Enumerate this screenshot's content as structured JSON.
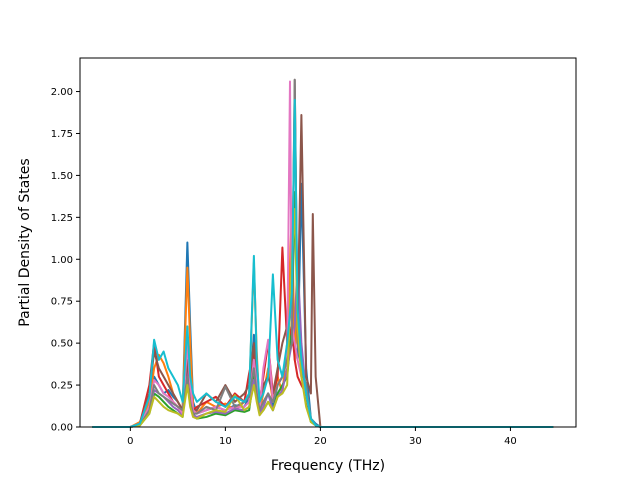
{
  "chart_data": {
    "type": "line",
    "title": "",
    "xlabel": "Frequency (THz)",
    "ylabel": "Partial Density of States",
    "xlim": [
      -5.3,
      46.9
    ],
    "ylim": [
      0.0,
      2.2
    ],
    "xticks": [
      0,
      10,
      20,
      30,
      40
    ],
    "yticks": [
      0.0,
      0.25,
      0.5,
      0.75,
      1.0,
      1.25,
      1.5,
      1.75,
      2.0
    ],
    "xtick_labels": [
      "0",
      "10",
      "20",
      "30",
      "40"
    ],
    "ytick_labels": [
      "0.00",
      "0.25",
      "0.50",
      "0.75",
      "1.00",
      "1.25",
      "1.50",
      "1.75",
      "2.00"
    ],
    "grid": false,
    "legend": "none",
    "series": [
      {
        "color": "#1f77b4",
        "x": [
          -4,
          0,
          1,
          2,
          2.5,
          3,
          3.5,
          4,
          4.5,
          5,
          5.5,
          6,
          6.3,
          6.6,
          7,
          8,
          9,
          10,
          11,
          12,
          12.5,
          13,
          13.3,
          13.6,
          14,
          14.5,
          15,
          15.5,
          16,
          16.5,
          17,
          17.3,
          17.6,
          18,
          18.5,
          19,
          19.5,
          20,
          44.5
        ],
        "y": [
          0,
          0,
          0.02,
          0.12,
          0.3,
          0.25,
          0.2,
          0.22,
          0.18,
          0.15,
          0.1,
          1.1,
          0.6,
          0.15,
          0.08,
          0.1,
          0.12,
          0.1,
          0.13,
          0.12,
          0.18,
          0.55,
          0.4,
          0.12,
          0.15,
          0.2,
          0.12,
          0.25,
          0.3,
          0.45,
          0.8,
          0.5,
          0.4,
          1.45,
          0.35,
          0.05,
          0.02,
          0,
          0
        ]
      },
      {
        "color": "#ff7f0e",
        "x": [
          -4,
          0,
          1,
          2,
          2.5,
          3,
          3.5,
          4,
          4.5,
          5,
          5.5,
          6,
          6.3,
          6.6,
          7,
          8,
          9,
          10,
          11,
          12,
          12.5,
          13,
          13.3,
          13.6,
          14,
          14.5,
          15,
          15.5,
          16,
          16.5,
          17,
          17.3,
          17.6,
          18,
          18.5,
          19,
          19.5,
          20,
          44.5
        ],
        "y": [
          0,
          0,
          0.03,
          0.15,
          0.35,
          0.43,
          0.38,
          0.3,
          0.2,
          0.15,
          0.1,
          0.95,
          0.5,
          0.12,
          0.08,
          0.15,
          0.12,
          0.14,
          0.1,
          0.15,
          0.2,
          0.98,
          0.45,
          0.1,
          0.2,
          0.35,
          0.15,
          0.3,
          0.2,
          0.5,
          1.3,
          0.4,
          0.8,
          0.3,
          0.2,
          0.05,
          0.01,
          0,
          0
        ]
      },
      {
        "color": "#2ca02c",
        "x": [
          -4,
          0,
          1,
          2,
          2.5,
          3,
          3.5,
          4,
          4.5,
          5,
          5.5,
          6,
          6.3,
          6.6,
          7,
          8,
          9,
          10,
          11,
          12,
          12.5,
          13,
          13.3,
          13.6,
          14,
          14.5,
          15,
          15.5,
          16,
          16.5,
          17,
          17.3,
          17.6,
          18,
          18.5,
          19,
          19.5,
          20,
          44.5
        ],
        "y": [
          0,
          0,
          0.01,
          0.08,
          0.2,
          0.18,
          0.15,
          0.12,
          0.1,
          0.08,
          0.06,
          0.4,
          0.2,
          0.08,
          0.05,
          0.06,
          0.08,
          0.07,
          0.1,
          0.09,
          0.1,
          0.3,
          0.2,
          0.08,
          0.1,
          0.15,
          0.1,
          0.2,
          0.25,
          0.3,
          0.6,
          1.4,
          0.7,
          0.4,
          0.15,
          0.03,
          0.01,
          0,
          0
        ]
      },
      {
        "color": "#d62728",
        "x": [
          -4,
          0,
          1,
          2,
          2.5,
          3,
          3.5,
          4,
          4.5,
          5,
          5.5,
          6,
          6.3,
          6.6,
          7,
          8,
          9,
          10,
          11,
          12,
          12.5,
          13,
          13.3,
          13.6,
          14,
          14.5,
          15,
          15.5,
          16,
          16.5,
          17,
          17.3,
          17.6,
          18,
          18.5,
          19,
          19.5,
          20,
          44.5
        ],
        "y": [
          0,
          0,
          0.02,
          0.25,
          0.5,
          0.3,
          0.25,
          0.2,
          0.15,
          0.12,
          0.08,
          0.3,
          0.15,
          0.1,
          0.12,
          0.15,
          0.18,
          0.12,
          0.2,
          0.15,
          0.32,
          0.45,
          0.25,
          0.15,
          0.3,
          0.5,
          0.2,
          0.3,
          1.07,
          0.5,
          0.6,
          0.4,
          0.3,
          0.25,
          0.2,
          0.04,
          0.01,
          0,
          0
        ]
      },
      {
        "color": "#9467bd",
        "x": [
          -4,
          0,
          1,
          2,
          2.5,
          3,
          3.5,
          4,
          4.5,
          5,
          5.5,
          6,
          6.3,
          6.6,
          7,
          8,
          9,
          10,
          11,
          12,
          12.5,
          13,
          13.3,
          13.6,
          14,
          14.5,
          15,
          15.5,
          16,
          16.5,
          17,
          17.3,
          17.6,
          18,
          18.5,
          19,
          19.5,
          20,
          44.5
        ],
        "y": [
          0,
          0,
          0.01,
          0.1,
          0.22,
          0.2,
          0.18,
          0.15,
          0.12,
          0.1,
          0.07,
          0.35,
          0.18,
          0.07,
          0.06,
          0.08,
          0.09,
          0.08,
          0.11,
          0.1,
          0.12,
          0.28,
          0.18,
          0.08,
          0.12,
          0.2,
          0.1,
          0.18,
          0.22,
          0.35,
          0.5,
          0.6,
          1.0,
          0.5,
          0.2,
          0.04,
          0.01,
          0,
          0
        ]
      },
      {
        "color": "#8c564b",
        "x": [
          -4,
          0,
          1,
          2,
          2.5,
          3,
          3.5,
          4,
          4.5,
          5,
          5.5,
          6,
          6.3,
          6.6,
          7,
          8,
          9,
          10,
          11,
          12,
          12.5,
          13,
          13.3,
          13.6,
          14,
          14.5,
          15,
          15.5,
          16,
          16.5,
          17,
          17.3,
          17.6,
          18,
          18.5,
          19,
          19.2,
          19.5,
          20,
          44.5
        ],
        "y": [
          0,
          0,
          0.02,
          0.2,
          0.45,
          0.35,
          0.3,
          0.25,
          0.2,
          0.15,
          0.1,
          0.4,
          0.2,
          0.1,
          0.1,
          0.2,
          0.15,
          0.25,
          0.15,
          0.2,
          0.25,
          0.5,
          0.3,
          0.15,
          0.25,
          0.3,
          0.2,
          0.35,
          0.5,
          0.6,
          0.7,
          2.07,
          0.6,
          1.86,
          0.3,
          0.2,
          1.27,
          0.3,
          0,
          0
        ]
      },
      {
        "color": "#e377c2",
        "x": [
          -4,
          0,
          1,
          2,
          2.5,
          3,
          3.5,
          4,
          4.5,
          5,
          5.5,
          6,
          6.3,
          6.6,
          7,
          8,
          9,
          10,
          11,
          12,
          12.5,
          13,
          13.3,
          13.6,
          14,
          14.5,
          15,
          15.5,
          16,
          16.5,
          16.8,
          17,
          17.3,
          17.6,
          18,
          18.5,
          19,
          19.5,
          20,
          44.5
        ],
        "y": [
          0,
          0,
          0.02,
          0.12,
          0.28,
          0.25,
          0.2,
          0.18,
          0.15,
          0.12,
          0.08,
          0.5,
          0.25,
          0.1,
          0.08,
          0.1,
          0.12,
          0.1,
          0.12,
          0.12,
          0.15,
          0.4,
          0.25,
          0.1,
          0.35,
          0.52,
          0.15,
          0.25,
          0.3,
          0.4,
          2.06,
          0.6,
          0.5,
          0.4,
          0.3,
          0.2,
          0.04,
          0.01,
          0,
          0
        ]
      },
      {
        "color": "#7f7f7f",
        "x": [
          -4,
          0,
          1,
          2,
          2.5,
          3,
          3.5,
          4,
          4.5,
          5,
          5.5,
          6,
          6.3,
          6.6,
          7,
          8,
          9,
          10,
          11,
          12,
          12.5,
          13,
          13.3,
          13.6,
          14,
          14.5,
          15,
          15.5,
          16,
          16.5,
          17,
          17.3,
          17.6,
          18,
          18.5,
          19,
          19.5,
          20,
          44.5
        ],
        "y": [
          0,
          0,
          0.01,
          0.1,
          0.25,
          0.2,
          0.18,
          0.16,
          0.14,
          0.12,
          0.1,
          0.3,
          0.15,
          0.08,
          0.08,
          0.12,
          0.1,
          0.24,
          0.12,
          0.15,
          0.18,
          0.35,
          0.2,
          0.1,
          0.15,
          0.2,
          0.15,
          0.25,
          0.3,
          0.4,
          0.5,
          2.07,
          0.5,
          0.35,
          0.25,
          0.05,
          0.01,
          0,
          0
        ]
      },
      {
        "color": "#bcbd22",
        "x": [
          -4,
          0,
          1,
          2,
          2.5,
          3,
          3.5,
          4,
          4.5,
          5,
          5.5,
          6,
          6.3,
          6.6,
          7,
          8,
          9,
          10,
          11,
          12,
          12.5,
          13,
          13.3,
          13.6,
          14,
          14.5,
          15,
          15.5,
          16,
          16.5,
          17,
          17.3,
          17.6,
          18,
          18.5,
          19,
          19.5,
          20,
          44.5
        ],
        "y": [
          0,
          0,
          0.01,
          0.08,
          0.18,
          0.15,
          0.12,
          0.1,
          0.09,
          0.08,
          0.06,
          0.25,
          0.12,
          0.06,
          0.05,
          0.08,
          0.1,
          0.09,
          0.19,
          0.1,
          0.12,
          0.25,
          0.15,
          0.07,
          0.1,
          0.15,
          0.1,
          0.18,
          0.2,
          0.25,
          1.0,
          1.3,
          0.6,
          0.3,
          0.12,
          0.03,
          0.01,
          0,
          0
        ]
      },
      {
        "color": "#17becf",
        "x": [
          -4,
          0,
          1,
          2,
          2.5,
          3,
          3.5,
          4,
          4.5,
          5,
          5.5,
          6,
          6.3,
          6.6,
          7,
          8,
          9,
          10,
          11,
          12,
          12.5,
          13,
          13.3,
          13.6,
          14,
          14.5,
          15,
          15.5,
          16,
          16.5,
          17,
          17.3,
          17.6,
          18,
          18.5,
          19,
          19.5,
          20,
          44.5
        ],
        "y": [
          0,
          0,
          0.02,
          0.18,
          0.52,
          0.4,
          0.45,
          0.35,
          0.3,
          0.25,
          0.15,
          0.6,
          0.3,
          0.2,
          0.15,
          0.2,
          0.15,
          0.12,
          0.18,
          0.15,
          0.2,
          1.02,
          0.4,
          0.15,
          0.2,
          0.3,
          0.91,
          0.4,
          0.3,
          0.5,
          0.8,
          1.95,
          0.7,
          0.4,
          0.2,
          0.05,
          0.01,
          0,
          0
        ]
      }
    ]
  }
}
